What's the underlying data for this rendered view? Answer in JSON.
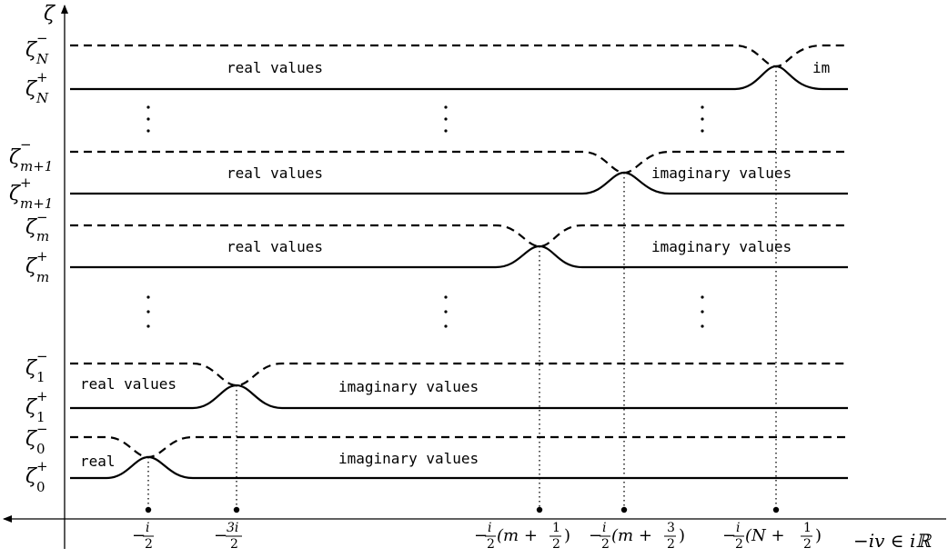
{
  "axes": {
    "y_label": "ζ",
    "x_label": "−iv ∈ iℝ"
  },
  "levels": [
    {
      "id": "N",
      "minus": {
        "base": "ζ",
        "sup": "−",
        "sub": "N"
      },
      "plus": {
        "base": "ζ",
        "sup": "+",
        "sub": "N"
      }
    },
    {
      "id": "m+1",
      "minus": {
        "base": "ζ",
        "sup": "−",
        "sub": "m+1"
      },
      "plus": {
        "base": "ζ",
        "sup": "+",
        "sub": "m+1"
      }
    },
    {
      "id": "m",
      "minus": {
        "base": "ζ",
        "sup": "−",
        "sub": "m"
      },
      "plus": {
        "base": "ζ",
        "sup": "+",
        "sub": "m"
      }
    },
    {
      "id": "1",
      "minus": {
        "base": "ζ",
        "sup": "−",
        "sub": "1"
      },
      "plus": {
        "base": "ζ",
        "sup": "+",
        "sub": "1"
      }
    },
    {
      "id": "0",
      "minus": {
        "base": "ζ",
        "sup": "−",
        "sub": "0"
      },
      "plus": {
        "base": "ζ",
        "sup": "+",
        "sub": "0"
      }
    }
  ],
  "region_labels": {
    "N_left": "real values",
    "N_right": "im",
    "m1_left": "real values",
    "m1_right": "imaginary values",
    "m_left": "real values",
    "m_right": "imaginary values",
    "one_left": "real values",
    "one_right": "imaginary values",
    "zero_left": "real",
    "zero_right": "imaginary values"
  },
  "ticks": {
    "t1": {
      "minus": "−",
      "num": "i",
      "den": "2",
      "tail": ""
    },
    "t2": {
      "minus": "−",
      "num": "3i",
      "den": "2",
      "tail": ""
    },
    "t3": {
      "minus": "−",
      "num": "i",
      "den": "2",
      "tail": "(m + ",
      "half_num": "1",
      "half_den": "2",
      "close": ")"
    },
    "t4": {
      "minus": "−",
      "num": "i",
      "den": "2",
      "tail": "(m + ",
      "half_num": "3",
      "half_den": "2",
      "close": ")"
    },
    "t5": {
      "minus": "−",
      "num": "i",
      "den": "2",
      "tail": "(N + ",
      "half_num": "1",
      "half_den": "2",
      "close": ")"
    }
  },
  "vdots_symbol": "⋮"
}
